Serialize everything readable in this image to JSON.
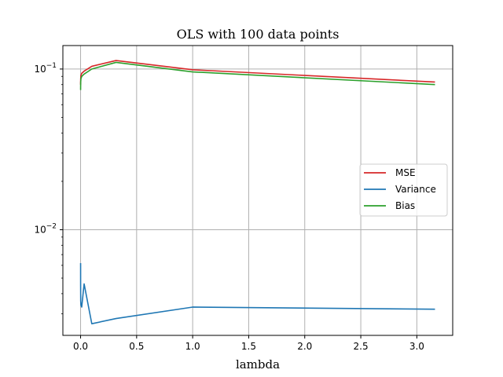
{
  "chart_data": {
    "type": "line",
    "title": "OLS with 100 data points",
    "xlabel": "lambda",
    "ylabel": "",
    "yscale": "log",
    "xlim": [
      -0.158,
      3.32
    ],
    "ylim": [
      0.0022,
      0.14
    ],
    "grid": true,
    "legend_position": "center-right",
    "x_ticks": [
      {
        "value": 0.0,
        "label": "0.0"
      },
      {
        "value": 0.5,
        "label": "0.5"
      },
      {
        "value": 1.0,
        "label": "1.0"
      },
      {
        "value": 1.5,
        "label": "1.5"
      },
      {
        "value": 2.0,
        "label": "2.0"
      },
      {
        "value": 2.5,
        "label": "2.5"
      },
      {
        "value": 3.0,
        "label": "3.0"
      }
    ],
    "y_ticks": [
      {
        "value": 0.01,
        "base": "10",
        "exp": "−2"
      },
      {
        "value": 0.1,
        "base": "10",
        "exp": "−1"
      }
    ],
    "x": [
      0.0001,
      0.000316,
      0.001,
      0.00316,
      0.01,
      0.0316,
      0.1,
      0.316,
      1.0,
      3.162
    ],
    "series": [
      {
        "name": "MSE",
        "color": "#d62728",
        "values": [
          0.08,
          0.083,
          0.087,
          0.091,
          0.094,
          0.097,
          0.104,
          0.113,
          0.099,
          0.083
        ]
      },
      {
        "name": "Variance",
        "color": "#1f77b4",
        "values": [
          0.0062,
          0.0045,
          0.0036,
          0.0034,
          0.0033,
          0.0046,
          0.0026,
          0.0028,
          0.0033,
          0.0032
        ]
      },
      {
        "name": "Bias",
        "color": "#2ca02c",
        "values": [
          0.074,
          0.078,
          0.083,
          0.087,
          0.09,
          0.093,
          0.1,
          0.11,
          0.096,
          0.08
        ]
      }
    ]
  }
}
